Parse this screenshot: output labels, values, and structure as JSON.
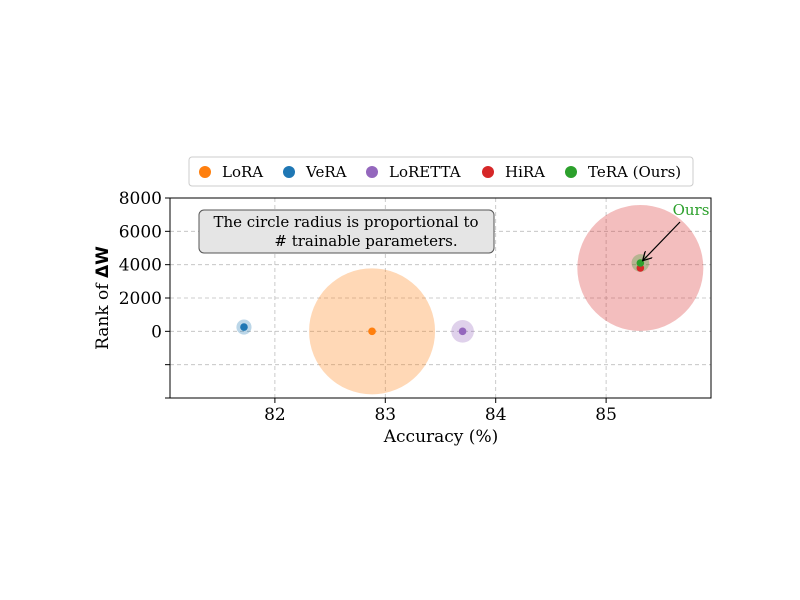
{
  "chart_data": {
    "type": "scatter",
    "title": "",
    "xlabel": "Accuracy (%)",
    "ylabel_prefix": "Rank of ",
    "ylabel_symbol": "ΔW",
    "xlim": [
      81.05,
      85.95
    ],
    "ylim": [
      -4000,
      8000
    ],
    "x_ticks": [
      82,
      83,
      84,
      85
    ],
    "x_tick_labels": [
      "82",
      "83",
      "84",
      "85"
    ],
    "y_ticks": [
      8000,
      6000,
      4000,
      2000,
      0,
      -2000,
      -4000
    ],
    "y_tick_labels": [
      "8000",
      "6000",
      "4000",
      "2000",
      "0",
      "",
      ""
    ],
    "grid": true,
    "legend_position": "top",
    "series": [
      {
        "name": "LoRA",
        "color": "#ff7f0e",
        "x": 82.88,
        "y": 0,
        "relative_size": 1.0
      },
      {
        "name": "VeRA",
        "color": "#1f77b4",
        "x": 81.72,
        "y": 256,
        "relative_size": 0.12
      },
      {
        "name": "LoRETTA",
        "color": "#9467bd",
        "x": 83.7,
        "y": 0,
        "relative_size": 0.18
      },
      {
        "name": "HiRA",
        "color": "#d62728",
        "x": 85.31,
        "y": 3800,
        "relative_size": 1.0
      },
      {
        "name": "TeRA (Ours)",
        "color": "#2ca02c",
        "x": 85.31,
        "y": 4100,
        "relative_size": 0.14
      }
    ],
    "annotations": [
      {
        "text_line1": "The circle radius is proportional to",
        "text_line2": "# trainable parameters."
      },
      {
        "text": "Ours",
        "color": "#2ca02c",
        "target_series": "TeRA (Ours)"
      }
    ]
  }
}
